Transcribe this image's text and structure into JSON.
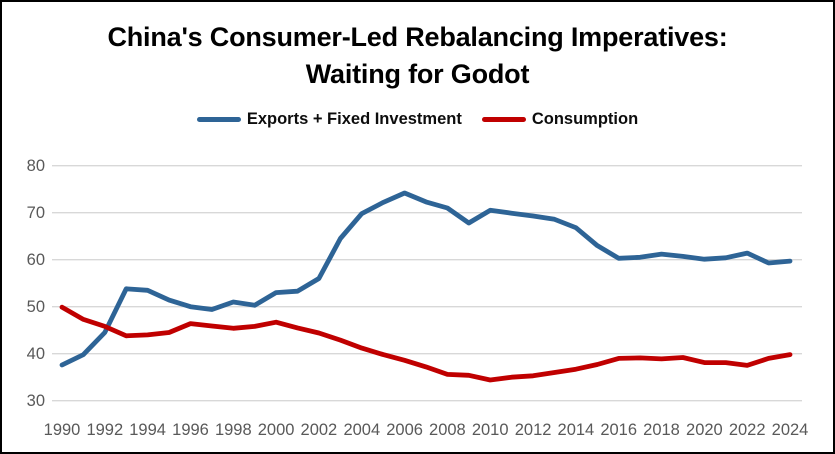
{
  "figure": {
    "title_line1": "China's Consumer-Led Rebalancing Imperatives:",
    "title_line2": "Waiting for Godot"
  },
  "chart_data": {
    "type": "line",
    "title": "China's Consumer-Led Rebalancing Imperatives: Waiting for Godot",
    "xlabel": "",
    "ylabel": "",
    "x": [
      1990,
      1991,
      1992,
      1993,
      1994,
      1995,
      1996,
      1997,
      1998,
      1999,
      2000,
      2001,
      2002,
      2003,
      2004,
      2005,
      2006,
      2007,
      2008,
      2009,
      2010,
      2011,
      2012,
      2013,
      2014,
      2015,
      2016,
      2017,
      2018,
      2019,
      2020,
      2021,
      2022,
      2023,
      2024
    ],
    "series": [
      {
        "name": "Exports + Fixed Investment",
        "color": "#2E6496",
        "values": [
          37.6,
          39.8,
          44.5,
          53.8,
          53.5,
          51.4,
          50.0,
          49.4,
          51.0,
          50.3,
          53.0,
          53.3,
          56.0,
          64.5,
          69.8,
          72.2,
          74.2,
          72.3,
          71.0,
          67.8,
          70.5,
          69.9,
          69.3,
          68.6,
          66.8,
          63.0,
          60.3,
          60.5,
          61.2,
          60.7,
          60.1,
          60.4,
          61.4,
          59.3,
          59.7
        ]
      },
      {
        "name": "Consumption",
        "color": "#C00000",
        "values": [
          49.9,
          47.3,
          45.8,
          43.8,
          44.0,
          44.5,
          46.4,
          45.9,
          45.4,
          45.8,
          46.7,
          45.5,
          44.4,
          42.9,
          41.2,
          39.8,
          38.6,
          37.2,
          35.6,
          35.4,
          34.4,
          35.0,
          35.3,
          36.0,
          36.7,
          37.7,
          39.0,
          39.1,
          38.9,
          39.2,
          38.1,
          38.1,
          37.5,
          39.0,
          39.8
        ]
      }
    ],
    "xticks": [
      1990,
      1992,
      1994,
      1996,
      1998,
      2000,
      2002,
      2004,
      2006,
      2008,
      2010,
      2012,
      2014,
      2016,
      2018,
      2020,
      2022,
      2024
    ],
    "yticks": [
      30,
      40,
      50,
      60,
      70,
      80
    ],
    "ylim": [
      30,
      80
    ],
    "grid": "horizontal-only",
    "legend_position": "top",
    "styles": {
      "axis_label_color": "#595959",
      "gridline_color": "#D8D8D8",
      "background": "#FFFFFF",
      "frame_border_color": "#000000",
      "line_width": 4.8
    }
  }
}
